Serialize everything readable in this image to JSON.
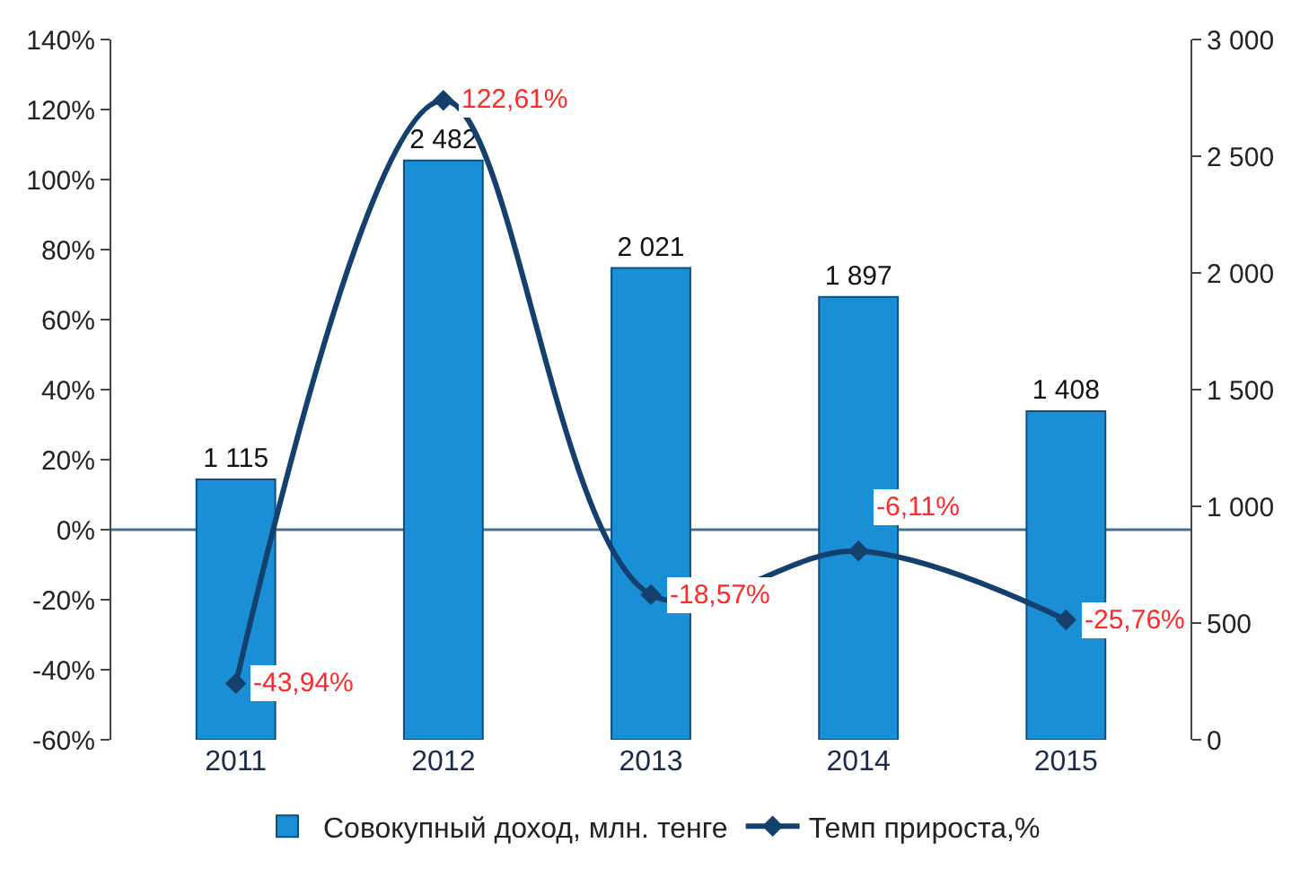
{
  "chart_data": {
    "type": "bar",
    "categories": [
      "2011",
      "2012",
      "2013",
      "2014",
      "2015"
    ],
    "series": [
      {
        "name": "Совокупный доход, млн. тенге",
        "axis": "y2",
        "color": "#1a8fd6",
        "values": [
          1115,
          2482,
          2021,
          1897,
          1408
        ],
        "value_labels": [
          "1 115",
          "2 482",
          "2 021",
          "1 897",
          "1 408"
        ]
      },
      {
        "name": "Темп прироста,%",
        "type": "line",
        "axis": "y",
        "color": "#14406e",
        "values": [
          -43.94,
          122.61,
          -18.57,
          -6.11,
          -25.76
        ],
        "value_labels": [
          "-43,94%",
          "122,61%",
          "-18,57%",
          "-6,11%",
          "-25,76%"
        ]
      }
    ],
    "ylim": [
      -60,
      140
    ],
    "yticks": [
      {
        "value": -60,
        "label": "-60%"
      },
      {
        "value": -40,
        "label": "-40%"
      },
      {
        "value": -20,
        "label": "-20%"
      },
      {
        "value": 0,
        "label": "0%"
      },
      {
        "value": 20,
        "label": "20%"
      },
      {
        "value": 40,
        "label": "40%"
      },
      {
        "value": 60,
        "label": "60%"
      },
      {
        "value": 80,
        "label": "80%"
      },
      {
        "value": 100,
        "label": "100%"
      },
      {
        "value": 120,
        "label": "120%"
      },
      {
        "value": 140,
        "label": "140%"
      }
    ],
    "y2lim": [
      0,
      3000
    ],
    "y2ticks": [
      0,
      {
        "value": 500,
        "label": "500"
      },
      {
        "value": 1000,
        "label": "1 000"
      },
      {
        "value": 1500,
        "label": "1 500"
      },
      {
        "value": 2000,
        "label": "2 000"
      },
      {
        "value": 2500,
        "label": "2 500"
      },
      {
        "value": 3000,
        "label": "3 000"
      }
    ],
    "ref_lines": [
      {
        "axis": "y",
        "value": 0,
        "color": "#4a6f8a"
      }
    ],
    "marker": "diamond",
    "legend": "bottom",
    "grid": false
  }
}
